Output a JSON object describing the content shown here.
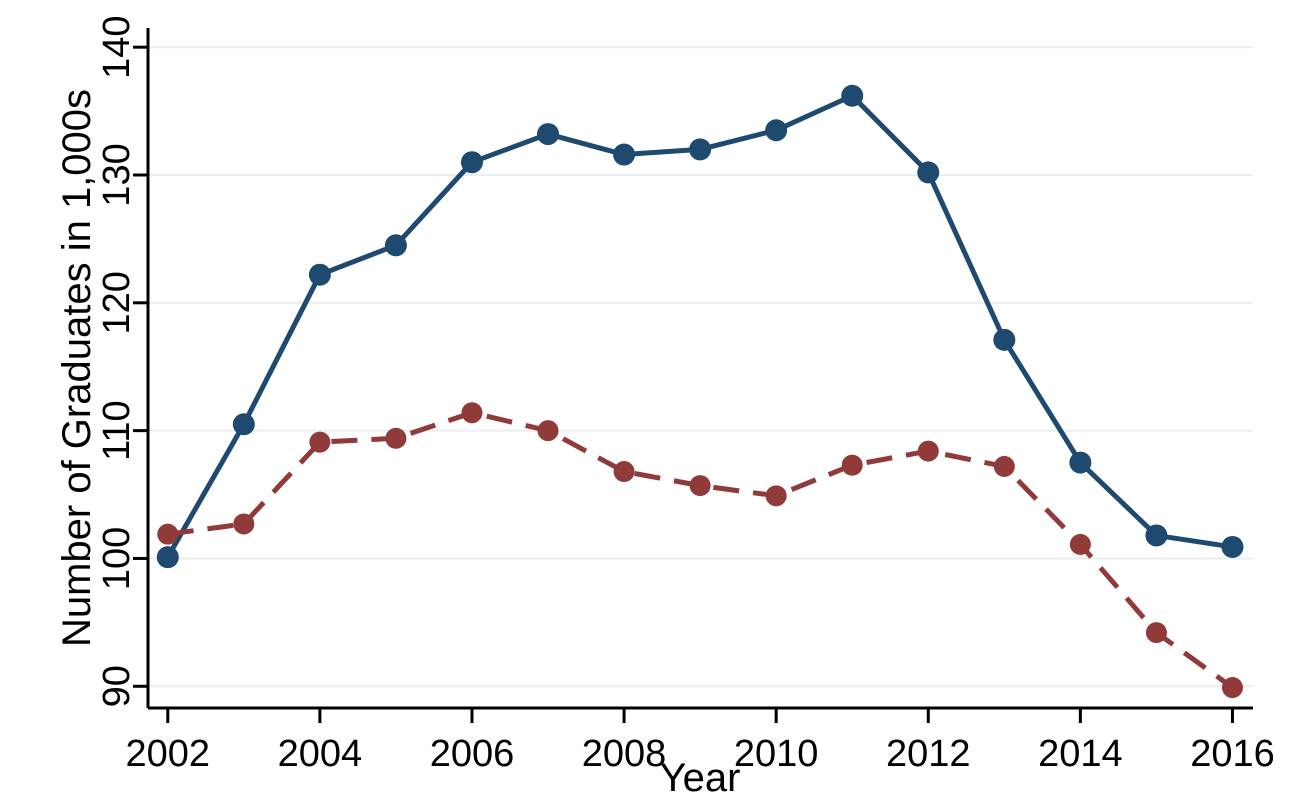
{
  "figure": {
    "background": "#ffffff"
  },
  "chart_data": {
    "type": "line",
    "title": "",
    "xlabel": "Year",
    "ylabel": "Number of Graduates in 1,000s",
    "x": [
      2002,
      2003,
      2004,
      2005,
      2006,
      2007,
      2008,
      2009,
      2010,
      2011,
      2012,
      2013,
      2014,
      2015,
      2016
    ],
    "series": [
      {
        "name": "solid-navy-series",
        "color": "#1f4a6f",
        "line_style": "solid",
        "marker": "circle",
        "marker_radius": 11,
        "values": [
          100.1,
          110.5,
          122.2,
          124.5,
          131.0,
          133.2,
          131.6,
          132.0,
          133.5,
          136.2,
          130.2,
          117.1,
          107.5,
          101.8,
          100.9
        ]
      },
      {
        "name": "dashed-maroon-series",
        "color": "#903a39",
        "line_style": "dashed",
        "marker": "circle",
        "marker_radius": 10.5,
        "values": [
          101.9,
          102.7,
          109.1,
          109.4,
          111.4,
          110.0,
          106.8,
          105.7,
          104.9,
          107.3,
          108.4,
          107.2,
          101.1,
          94.2,
          89.9
        ]
      }
    ],
    "x_ticks": [
      2002,
      2004,
      2006,
      2008,
      2010,
      2012,
      2014,
      2016
    ],
    "y_ticks": [
      90,
      100,
      110,
      120,
      130,
      140
    ],
    "xlim": [
      2001.74,
      2016.27
    ],
    "ylim": [
      88.3,
      141.5
    ],
    "grid": "horizontal-only",
    "grid_color": "#e9eef1",
    "axis_color": "#000000",
    "legend": "none"
  }
}
